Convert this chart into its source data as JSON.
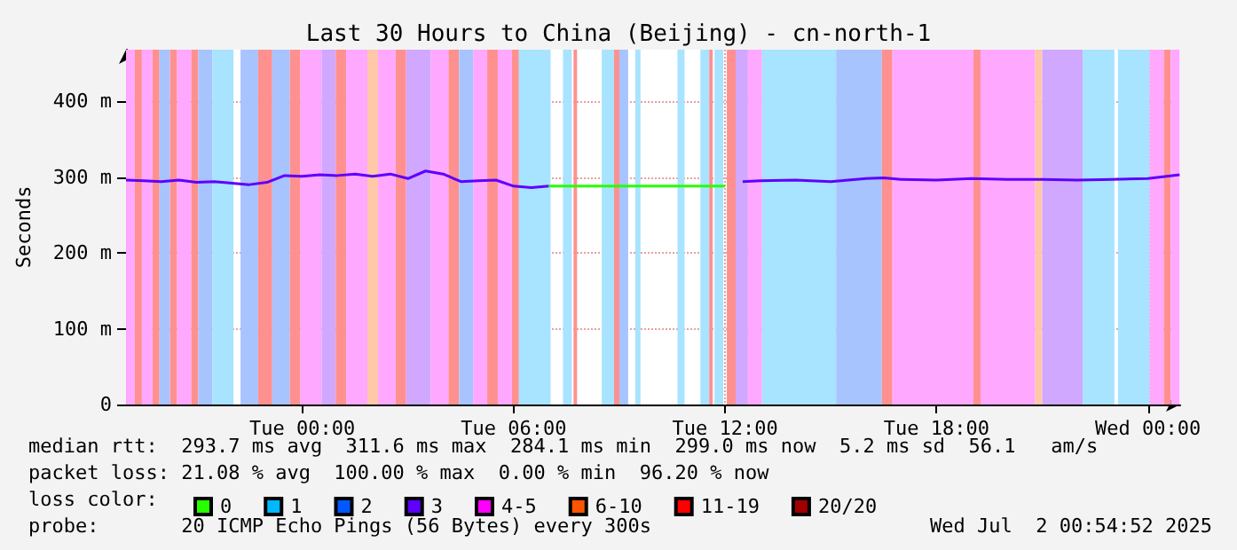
{
  "chart_data": {
    "type": "line",
    "title": "Last 30 Hours to China (Beijing) - cn-north-1",
    "ylabel": "Seconds",
    "xlim": [
      "2025-06-30T19:00",
      "2025-07-02T00:55"
    ],
    "xticks": [
      {
        "value": "2025-07-01T00:00",
        "label": "Tue 00:00"
      },
      {
        "value": "2025-07-01T06:00",
        "label": "Tue 06:00"
      },
      {
        "value": "2025-07-01T12:00",
        "label": "Tue 12:00"
      },
      {
        "value": "2025-07-01T18:00",
        "label": "Tue 18:00"
      },
      {
        "value": "2025-07-02T00:00",
        "label": "Wed 00:00"
      }
    ],
    "ylim": [
      0,
      468
    ],
    "yticks": [
      0,
      {
        "value": 100,
        "label": "100 m"
      },
      {
        "value": 200,
        "label": "200 m"
      },
      {
        "value": 300,
        "label": "300 m"
      },
      {
        "value": 400,
        "label": "400 m"
      }
    ],
    "grid": true,
    "legend": "bottom",
    "legend_title": "loss color:",
    "series": [
      {
        "color": "#5e00ff",
        "x": [
          "2025-06-30T19:00",
          "2025-06-30T19:30",
          "2025-06-30T20:00",
          "2025-06-30T20:30",
          "2025-06-30T21:00",
          "2025-06-30T21:30",
          "2025-06-30T22:00",
          "2025-06-30T22:30",
          "2025-06-30T23:00",
          "2025-06-30T23:30",
          "2025-07-01T00:00",
          "2025-07-01T00:30",
          "2025-07-01T01:00",
          "2025-07-01T01:30",
          "2025-07-01T02:00",
          "2025-07-01T02:30",
          "2025-07-01T03:00",
          "2025-07-01T03:30",
          "2025-07-01T04:00",
          "2025-07-01T04:30",
          "2025-07-01T05:00",
          "2025-07-01T05:30",
          "2025-07-01T06:00",
          "2025-07-01T06:30",
          "2025-07-01T07:00",
          "2025-07-01T12:00",
          "2025-07-01T12:30",
          "2025-07-01T13:00",
          "2025-07-01T14:00",
          "2025-07-01T15:00",
          "2025-07-01T16:00",
          "2025-07-01T16:30",
          "2025-07-01T17:00",
          "2025-07-01T18:00",
          "2025-07-01T19:00",
          "2025-07-01T20:00",
          "2025-07-01T21:00",
          "2025-07-01T22:00",
          "2025-07-01T23:00",
          "2025-07-02T00:00",
          "2025-07-02T00:54"
        ],
        "values": [
          296,
          295,
          294,
          296,
          293,
          294,
          292,
          290,
          293,
          302,
          301,
          303,
          302,
          304,
          301,
          304,
          298,
          308,
          304,
          294,
          295,
          296,
          288,
          286,
          288,
          null,
          294,
          295,
          296,
          294,
          298,
          299,
          297,
          296,
          298,
          297,
          297,
          296,
          297,
          298,
          303
        ]
      },
      {
        "color": "#26ff00",
        "x": [
          "2025-07-01T07:00",
          "2025-07-01T09:00",
          "2025-07-01T12:00"
        ],
        "values": [
          288,
          288,
          288
        ]
      },
      {
        "type": "bar",
        "name": "0",
        "color": "#26ff00"
      },
      {
        "type": "bar",
        "name": "1",
        "color": "#00b8ff"
      },
      {
        "type": "bar",
        "name": "2",
        "color": "#0059ff"
      },
      {
        "type": "bar",
        "name": "3",
        "color": "#5e00ff"
      },
      {
        "type": "bar",
        "name": "4-5",
        "color": "#ff00ff"
      },
      {
        "type": "bar",
        "name": "6-10",
        "color": "#ff5500"
      },
      {
        "type": "bar",
        "name": "11-19",
        "color": "#ff0000"
      },
      {
        "type": "bar",
        "name": "20/20",
        "color": "#a10000"
      }
    ],
    "bands": [
      {
        "axis": "x",
        "from": "2025-06-30T19:00",
        "to": "2025-06-30T19:15",
        "color": "#ffa8ff"
      },
      {
        "axis": "x",
        "from": "2025-06-30T19:15",
        "to": "2025-06-30T19:27",
        "color": "#ff9090"
      },
      {
        "axis": "x",
        "from": "2025-06-30T19:27",
        "to": "2025-06-30T19:45",
        "color": "#ffa8ff"
      },
      {
        "axis": "x",
        "from": "2025-06-30T19:45",
        "to": "2025-06-30T19:57",
        "color": "#ff9090"
      },
      {
        "axis": "x",
        "from": "2025-06-30T19:57",
        "to": "2025-06-30T20:15",
        "color": "#a8c4ff"
      },
      {
        "axis": "x",
        "from": "2025-06-30T20:15",
        "to": "2025-06-30T20:27",
        "color": "#ff9090"
      },
      {
        "axis": "x",
        "from": "2025-06-30T20:27",
        "to": "2025-06-30T20:51",
        "color": "#ffa8ff"
      },
      {
        "axis": "x",
        "from": "2025-06-30T20:51",
        "to": "2025-06-30T21:03",
        "color": "#ff9090"
      },
      {
        "axis": "x",
        "from": "2025-06-30T21:03",
        "to": "2025-06-30T21:27",
        "color": "#a8c4ff"
      },
      {
        "axis": "x",
        "from": "2025-06-30T21:27",
        "to": "2025-06-30T22:03",
        "color": "#a8e4ff"
      },
      {
        "axis": "x",
        "from": "2025-06-30T22:15",
        "to": "2025-06-30T22:45",
        "color": "#a8c4ff"
      },
      {
        "axis": "x",
        "from": "2025-06-30T22:45",
        "to": "2025-06-30T23:09",
        "color": "#ff9090"
      },
      {
        "axis": "x",
        "from": "2025-06-30T23:09",
        "to": "2025-06-30T23:39",
        "color": "#a8c4ff"
      },
      {
        "axis": "x",
        "from": "2025-06-30T23:39",
        "to": "2025-06-30T23:57",
        "color": "#ff9090"
      },
      {
        "axis": "x",
        "from": "2025-06-30T23:57",
        "to": "2025-07-01T00:33",
        "color": "#ffa8ff"
      },
      {
        "axis": "x",
        "from": "2025-07-01T00:33",
        "to": "2025-07-01T00:57",
        "color": "#d0a8ff"
      },
      {
        "axis": "x",
        "from": "2025-07-01T00:57",
        "to": "2025-07-01T01:15",
        "color": "#ff9090"
      },
      {
        "axis": "x",
        "from": "2025-07-01T01:15",
        "to": "2025-07-01T01:51",
        "color": "#ffa8ff"
      },
      {
        "axis": "x",
        "from": "2025-07-01T01:51",
        "to": "2025-07-01T02:09",
        "color": "#ffc8a8"
      },
      {
        "axis": "x",
        "from": "2025-07-01T02:09",
        "to": "2025-07-01T02:39",
        "color": "#ffa8ff"
      },
      {
        "axis": "x",
        "from": "2025-07-01T02:39",
        "to": "2025-07-01T02:57",
        "color": "#ff9090"
      },
      {
        "axis": "x",
        "from": "2025-07-01T02:57",
        "to": "2025-07-01T03:39",
        "color": "#d0a8ff"
      },
      {
        "axis": "x",
        "from": "2025-07-01T03:39",
        "to": "2025-07-01T04:09",
        "color": "#ffa8ff"
      },
      {
        "axis": "x",
        "from": "2025-07-01T04:09",
        "to": "2025-07-01T04:27",
        "color": "#ff9090"
      },
      {
        "axis": "x",
        "from": "2025-07-01T04:27",
        "to": "2025-07-01T04:51",
        "color": "#a8c4ff"
      },
      {
        "axis": "x",
        "from": "2025-07-01T04:51",
        "to": "2025-07-01T05:15",
        "color": "#ffa8ff"
      },
      {
        "axis": "x",
        "from": "2025-07-01T05:15",
        "to": "2025-07-01T05:33",
        "color": "#ff9090"
      },
      {
        "axis": "x",
        "from": "2025-07-01T05:33",
        "to": "2025-07-01T05:57",
        "color": "#ffa8ff"
      },
      {
        "axis": "x",
        "from": "2025-07-01T05:57",
        "to": "2025-07-01T06:09",
        "color": "#ff9090"
      },
      {
        "axis": "x",
        "from": "2025-07-01T06:09",
        "to": "2025-07-01T07:03",
        "color": "#a8e4ff"
      },
      {
        "axis": "x",
        "from": "2025-07-01T07:24",
        "to": "2025-07-01T07:39",
        "color": "#a8e4ff"
      },
      {
        "axis": "x",
        "from": "2025-07-01T07:42",
        "to": "2025-07-01T07:48",
        "color": "#ff9090"
      },
      {
        "axis": "x",
        "from": "2025-07-01T08:30",
        "to": "2025-07-01T08:51",
        "color": "#a8e4ff"
      },
      {
        "axis": "x",
        "from": "2025-07-01T08:51",
        "to": "2025-07-01T09:00",
        "color": "#ff9090"
      },
      {
        "axis": "x",
        "from": "2025-07-01T09:00",
        "to": "2025-07-01T09:15",
        "color": "#a8c4ff"
      },
      {
        "axis": "x",
        "from": "2025-07-01T09:27",
        "to": "2025-07-01T09:36",
        "color": "#a8e4ff"
      },
      {
        "axis": "x",
        "from": "2025-07-01T10:39",
        "to": "2025-07-01T10:51",
        "color": "#a8e4ff"
      },
      {
        "axis": "x",
        "from": "2025-07-01T11:18",
        "to": "2025-07-01T11:33",
        "color": "#a8e4ff"
      },
      {
        "axis": "x",
        "from": "2025-07-01T11:33",
        "to": "2025-07-01T11:39",
        "color": "#ff9090"
      },
      {
        "axis": "x",
        "from": "2025-07-01T11:42",
        "to": "2025-07-01T11:57",
        "color": "#a8e4ff"
      },
      {
        "axis": "x",
        "from": "2025-07-01T12:03",
        "to": "2025-07-01T12:18",
        "color": "#ff9090"
      },
      {
        "axis": "x",
        "from": "2025-07-01T12:18",
        "to": "2025-07-01T12:39",
        "color": "#d0a8ff"
      },
      {
        "axis": "x",
        "from": "2025-07-01T12:39",
        "to": "2025-07-01T13:03",
        "color": "#ffa8ff"
      },
      {
        "axis": "x",
        "from": "2025-07-01T13:03",
        "to": "2025-07-01T15:09",
        "color": "#a8e4ff"
      },
      {
        "axis": "x",
        "from": "2025-07-01T15:09",
        "to": "2025-07-01T16:27",
        "color": "#a8c4ff"
      },
      {
        "axis": "x",
        "from": "2025-07-01T16:27",
        "to": "2025-07-01T16:45",
        "color": "#ff9090"
      },
      {
        "axis": "x",
        "from": "2025-07-01T16:45",
        "to": "2025-07-01T19:03",
        "color": "#ffa8ff"
      },
      {
        "axis": "x",
        "from": "2025-07-01T19:03",
        "to": "2025-07-01T19:15",
        "color": "#ff9090"
      },
      {
        "axis": "x",
        "from": "2025-07-01T19:15",
        "to": "2025-07-01T20:48",
        "color": "#ffa8ff"
      },
      {
        "axis": "x",
        "from": "2025-07-01T20:48",
        "to": "2025-07-01T21:00",
        "color": "#ffc8a8"
      },
      {
        "axis": "x",
        "from": "2025-07-01T21:00",
        "to": "2025-07-01T22:09",
        "color": "#d0a8ff"
      },
      {
        "axis": "x",
        "from": "2025-07-01T22:09",
        "to": "2025-07-01T23:03",
        "color": "#a8e4ff"
      },
      {
        "axis": "x",
        "from": "2025-07-01T23:09",
        "to": "2025-07-02T00:03",
        "color": "#a8e4ff"
      },
      {
        "axis": "x",
        "from": "2025-07-02T00:03",
        "to": "2025-07-02T00:27",
        "color": "#ffa8ff"
      },
      {
        "axis": "x",
        "from": "2025-07-02T00:27",
        "to": "2025-07-02T00:39",
        "color": "#ff9090"
      },
      {
        "axis": "x",
        "from": "2025-07-02T00:39",
        "to": "2025-07-02T00:54",
        "color": "#ffa8ff"
      }
    ],
    "annotations": [
      "median rtt:  293.7 ms avg  311.6 ms max  284.1 ms min  299.0 ms now  5.2 ms sd  56.1   am/s",
      "packet loss: 21.08 % avg  100.00 % max  0.00 % min  96.20 % now",
      "probe:       20 ICMP Echo Pings (56 Bytes) every 300s",
      "Wed Jul  2 00:54:52 2025"
    ]
  }
}
